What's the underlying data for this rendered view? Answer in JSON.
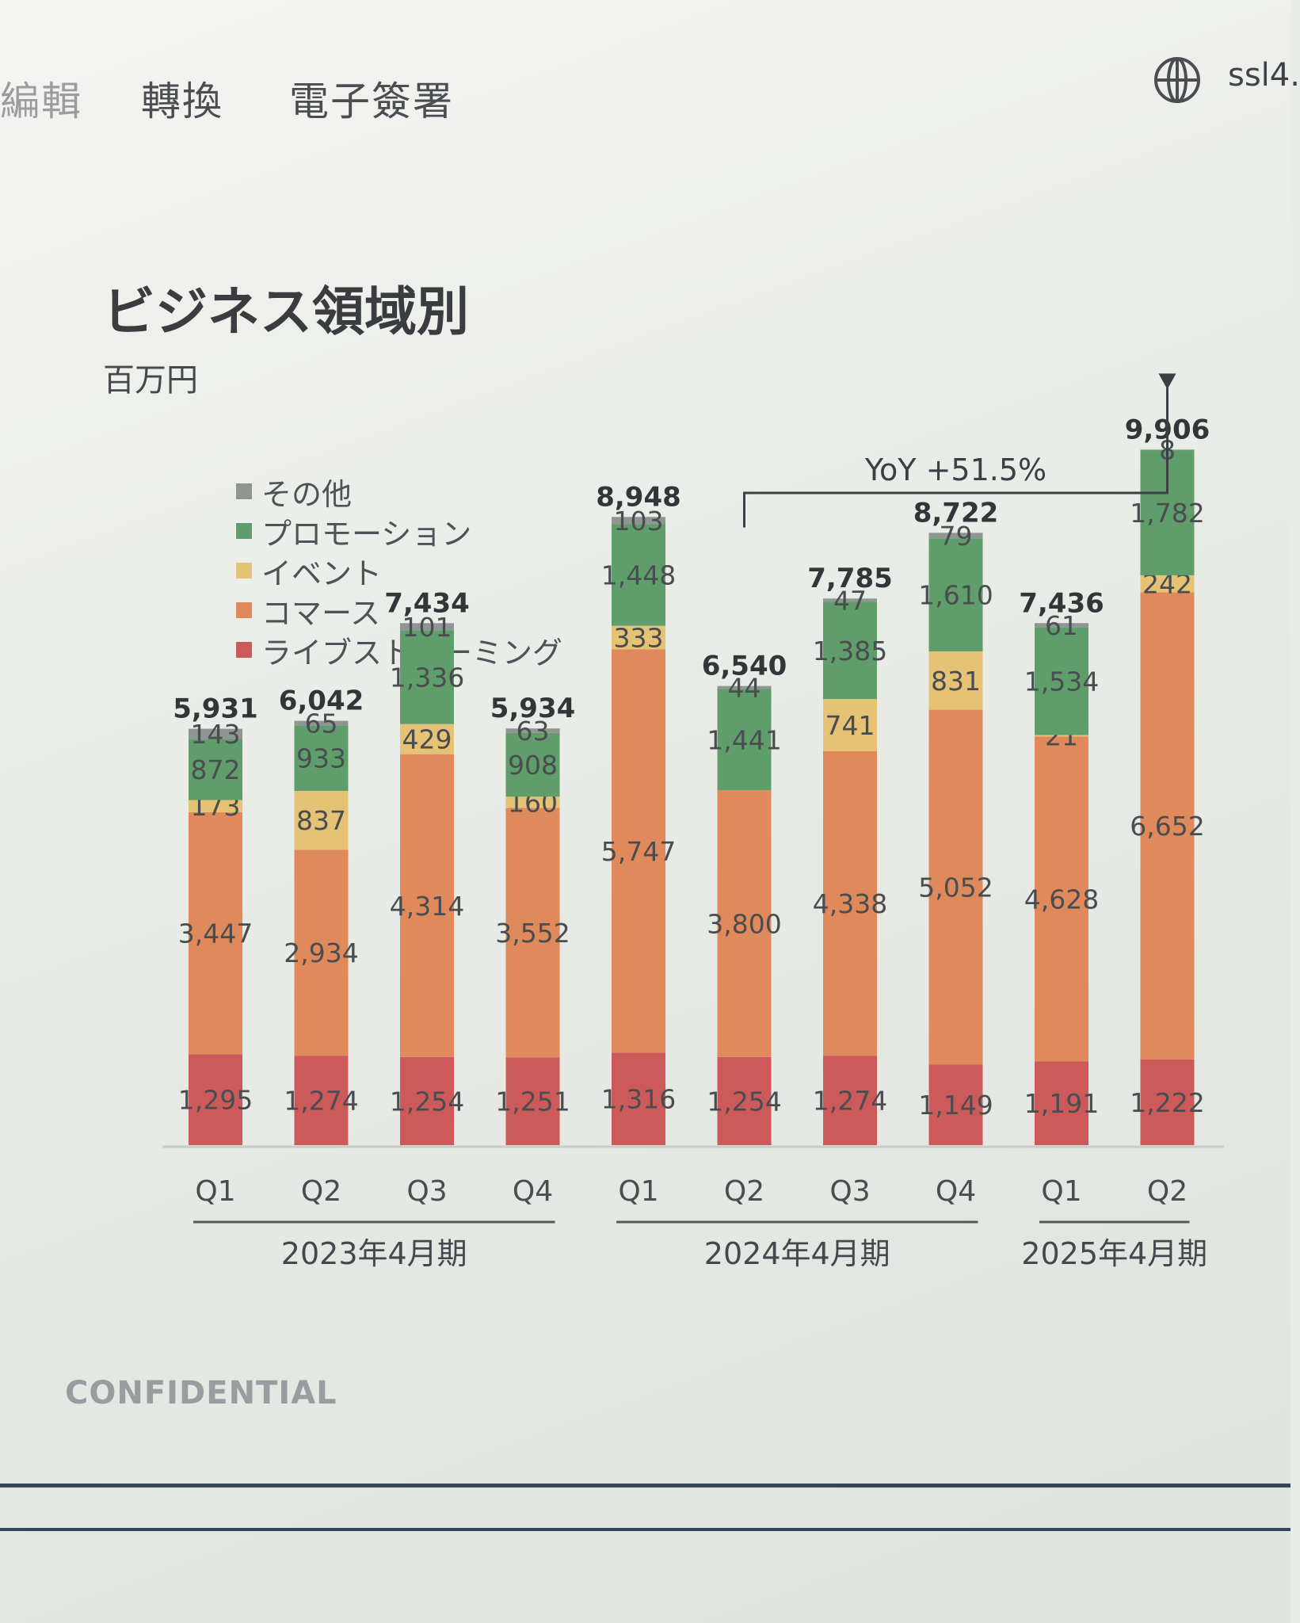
{
  "toolbar": {
    "items": [
      "編輯",
      "轉換",
      "電子簽署"
    ],
    "host": "ssl4."
  },
  "page": {
    "title": "ビジネス領域別",
    "unit": "百万円",
    "footer": "CONFIDENTIAL"
  },
  "chart_data": {
    "type": "bar",
    "stacked": true,
    "categories": [
      "Q1",
      "Q2",
      "Q3",
      "Q4",
      "Q1",
      "Q2",
      "Q3",
      "Q4",
      "Q1",
      "Q2"
    ],
    "groups": [
      {
        "label": "2023年4月期",
        "start": 0,
        "end": 3
      },
      {
        "label": "2024年4月期",
        "start": 4,
        "end": 7
      },
      {
        "label": "2025年4月期",
        "start": 8,
        "end": 9
      }
    ],
    "series": [
      {
        "name": "ライブストリーミング",
        "color": "#cc5a5a",
        "values": [
          1295,
          1274,
          1254,
          1251,
          1316,
          1254,
          1274,
          1149,
          1191,
          1222
        ]
      },
      {
        "name": "コマース",
        "color": "#e08a5c",
        "values": [
          3447,
          2934,
          4314,
          3552,
          5747,
          3800,
          4338,
          5052,
          4628,
          6652
        ]
      },
      {
        "name": "イベント",
        "color": "#e5c274",
        "values": [
          173,
          837,
          429,
          160,
          333,
          null,
          741,
          831,
          21,
          242
        ]
      },
      {
        "name": "プロモーション",
        "color": "#5f9e6a",
        "values": [
          872,
          933,
          1336,
          908,
          1448,
          1441,
          1385,
          1610,
          1534,
          1782
        ]
      },
      {
        "name": "その他",
        "color": "#8f9591",
        "values": [
          143,
          65,
          101,
          63,
          103,
          44,
          47,
          79,
          61,
          8
        ]
      }
    ],
    "totals": [
      5931,
      6042,
      7434,
      5934,
      8948,
      6540,
      7785,
      8722,
      7436,
      9906
    ],
    "annotation": {
      "text": "YoY +51.5%",
      "from_index": 5,
      "to_index": 9
    },
    "legend_position": "top-left",
    "grid": false
  }
}
